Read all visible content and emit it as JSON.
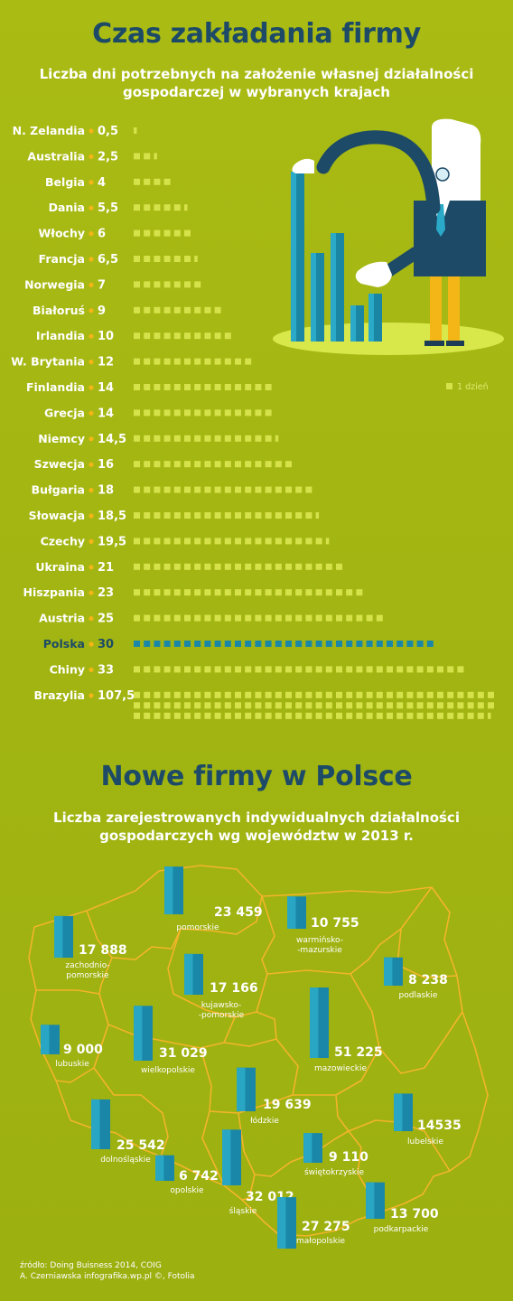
{
  "section1": {
    "title": "Czas zakładania firmy",
    "subtitle_line1": "Liczba dni potrzebnych na założenie własnej działalności",
    "subtitle_line2": "gospodarczej w wybranych krajach",
    "legend_label": "1 dzień"
  },
  "section2": {
    "title": "Nowe firmy w Polsce",
    "subtitle_line1": "Liczba zarejestrowanych indywidualnych działalności",
    "subtitle_line2": "gospodarczych wg województw w 2013 r."
  },
  "footer": {
    "source": "źródło: Doing Buisness 2014, COIG",
    "author": "A. Czerniawska infografika.wp.pl ©, Fotolia"
  },
  "colors": {
    "title": "#1c4a67",
    "bar_default": "#d6e24a",
    "bar_highlight": "#1a87a8",
    "map_line": "#f3b52a",
    "map_bar": "#29a6c4"
  },
  "chart_data": [
    {
      "type": "bar",
      "orientation": "horizontal",
      "title": "Czas zakładania firmy",
      "subtitle": "Liczba dni potrzebnych na założenie własnej działalności gospodarczej w wybranych krajach",
      "unit": "dni",
      "legend": "1 dzień",
      "highlight": "Polska",
      "categories": [
        "N. Zelandia",
        "Australia",
        "Belgia",
        "Dania",
        "Włochy",
        "Francja",
        "Norwegia",
        "Białoruś",
        "Irlandia",
        "W. Brytania",
        "Finlandia",
        "Grecja",
        "Niemcy",
        "Szwecja",
        "Bułgaria",
        "Słowacja",
        "Czechy",
        "Ukraina",
        "Hiszpania",
        "Austria",
        "Polska",
        "Chiny",
        "Brazylia"
      ],
      "values": [
        0.5,
        2.5,
        4,
        5.5,
        6,
        6.5,
        7,
        9,
        10,
        12,
        14,
        14,
        14.5,
        16,
        18,
        18.5,
        19.5,
        21,
        23,
        25,
        30,
        33,
        107.5
      ],
      "labels": [
        "0,5",
        "2,5",
        "4",
        "5,5",
        "6",
        "6,5",
        "7",
        "9",
        "10",
        "12",
        "14",
        "14",
        "14,5",
        "16",
        "18",
        "18,5",
        "19,5",
        "21",
        "23",
        "25",
        "30",
        "33",
        "107,5"
      ]
    },
    {
      "type": "bar",
      "title": "Nowe firmy w Polsce",
      "subtitle": "Liczba zarejestrowanych indywidualnych działalności gospodarczych wg województw w 2013 r.",
      "categories": [
        "pomorskie",
        "zachodnio-pomorskie",
        "warmińsko--mazurskie",
        "kujawsko--pomorskie",
        "podlaskie",
        "lubuskie",
        "wielkopolskie",
        "mazowieckie",
        "łódzkie",
        "dolnośląskie",
        "lubelskie",
        "opolskie",
        "śląskie",
        "świętokrzyskie",
        "małopolskie",
        "podkarpackie"
      ],
      "values": [
        23459,
        17888,
        10755,
        17166,
        8238,
        9000,
        31029,
        51225,
        19639,
        25542,
        14535,
        6742,
        32012,
        9110,
        27275,
        13700
      ],
      "labels": [
        "23 459",
        "17 888",
        "10 755",
        "17 166",
        "8 238",
        "9 000",
        "31 029",
        "51 225",
        "19 639",
        "25 542",
        "14535",
        "6 742",
        "32 012",
        "9 110",
        "27 275",
        "13 700"
      ],
      "region_lines": [
        [
          "pomorskie"
        ],
        [
          "zachodnio-",
          "pomorskie"
        ],
        [
          "warmińsko-",
          "-mazurskie"
        ],
        [
          "kujawsko-",
          "-pomorskie"
        ],
        [
          "podlaskie"
        ],
        [
          "lubuskie"
        ],
        [
          "wielkopolskie"
        ],
        [
          "mazowieckie"
        ],
        [
          "łódzkie"
        ],
        [
          "dolnośląskie"
        ],
        [
          "lubelskie"
        ],
        [
          "opolskie"
        ],
        [
          "śląskie"
        ],
        [
          "świętokrzyskie"
        ],
        [
          "małopolskie"
        ],
        [
          "podkarpackie"
        ]
      ]
    }
  ]
}
